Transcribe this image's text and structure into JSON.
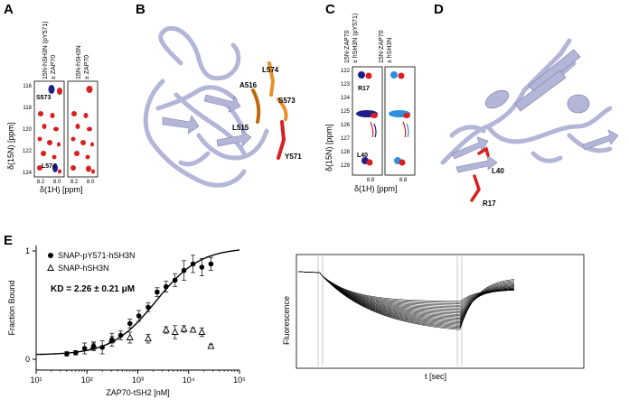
{
  "panels": {
    "A": {
      "letter": "A",
      "col1_header": [
        "15N-hSH3N (pY571)",
        "± ZAP70"
      ],
      "col2_header": [
        "15N-hSH3N",
        "± ZAP70"
      ],
      "y_label": "δ(15N) [ppm]",
      "x_label": "δ(1H) [ppm]",
      "y_ticks": [
        "116",
        "118",
        "120",
        "122",
        "124"
      ],
      "x_ticks": [
        "8.2",
        "8.0",
        "8.2",
        "8.0"
      ],
      "peak_labels": [
        "S573",
        "L574"
      ]
    },
    "B": {
      "letter": "B",
      "labels": [
        "L574",
        "A516",
        "S573",
        "L515",
        "Y571"
      ]
    },
    "C": {
      "letter": "C",
      "col1_header": [
        "15N-ZAP70",
        "± hSH3N (pY571)"
      ],
      "col2_header": [
        "15N-ZAP70",
        "± hSH3N"
      ],
      "y_label": "δ(15N) [ppm]",
      "x_label": "δ(1H) [ppm]",
      "y_ticks": [
        "122",
        "123",
        "124",
        "125",
        "126",
        "127",
        "128",
        "129"
      ],
      "x_ticks": [
        "8.8",
        "8.8"
      ],
      "peak_labels": [
        "R17",
        "L40"
      ]
    },
    "D": {
      "letter": "D",
      "labels": [
        "L40",
        "R17"
      ]
    },
    "E": {
      "letter": "E",
      "kd_text": "KD = 2.26 ± 0.21 μM",
      "right_ylabel": "Fluorescence",
      "right_xlabel": "t [sec]"
    }
  },
  "colors": {
    "ribbon": "#b4b6d8",
    "ribbon_dark": "#7d80b0",
    "orange": "#e8902a",
    "red": "#d92020",
    "navy": "#1c1f8a",
    "blue": "#2e8fe0"
  },
  "chart_data": {
    "type": "scatter",
    "xlabel": "ZAP70-tSH2 [nM]",
    "ylabel": "Fraction Bound",
    "x_scale": "log",
    "xlim": [
      10,
      100000
    ],
    "ylim": [
      -0.1,
      1.05
    ],
    "x_ticks": [
      "10¹",
      "10²",
      "10³",
      "10⁴",
      "10⁵"
    ],
    "y_ticks": [
      "0",
      "1"
    ],
    "legend_position": "top-left",
    "series": [
      {
        "name": "SNAP-pY571-hSH3N",
        "marker": "filled-circle",
        "x": [
          40,
          60,
          90,
          135,
          200,
          310,
          460,
          700,
          1050,
          1600,
          2400,
          3600,
          5400,
          8100,
          12200,
          18200,
          27400
        ],
        "y": [
          0.05,
          0.06,
          0.1,
          0.12,
          0.11,
          0.18,
          0.22,
          0.33,
          0.4,
          0.48,
          0.62,
          0.67,
          0.73,
          0.82,
          0.88,
          0.85,
          0.88
        ],
        "errors": [
          0.02,
          0.02,
          0.05,
          0.03,
          0.06,
          0.06,
          0.04,
          0.04,
          0.05,
          0.04,
          0.04,
          0.05,
          0.06,
          0.09,
          0.08,
          0.08,
          0.06
        ]
      },
      {
        "name": "SNAP-hSH3N",
        "marker": "open-triangle",
        "x": [
          135,
          310,
          700,
          1600,
          3600,
          5400,
          8100,
          12200,
          18200,
          27400
        ],
        "y": [
          0.12,
          0.18,
          0.2,
          0.19,
          0.27,
          0.25,
          0.28,
          0.27,
          0.25,
          0.12
        ],
        "errors": [
          0.04,
          0.03,
          0.05,
          0.04,
          0.03,
          0.06,
          0.03,
          0.02,
          0.04,
          0.02
        ]
      },
      {
        "name": "fit",
        "type": "line",
        "kd": 2260,
        "ymin": 0.04,
        "ymax": 1.03
      }
    ]
  }
}
